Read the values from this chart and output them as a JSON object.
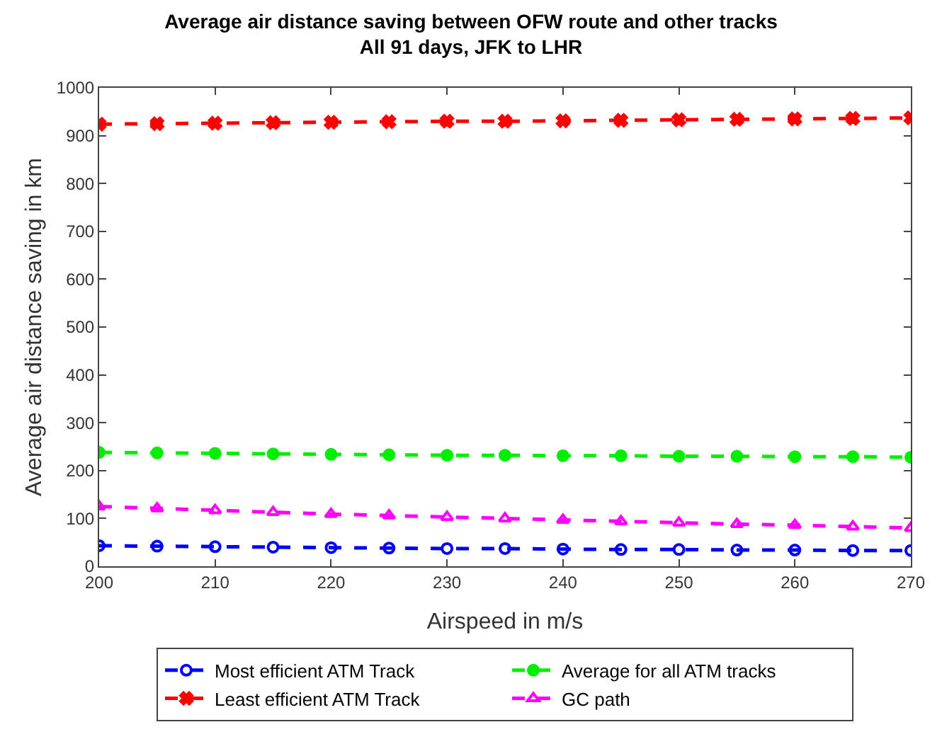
{
  "chart_data": {
    "type": "line",
    "title": "Average air distance saving between OFW route and other tracks",
    "subtitle": "All 91 days, JFK to LHR",
    "xlabel": "Airspeed in m/s",
    "ylabel": "Average air distance saving in km",
    "x": [
      200,
      205,
      210,
      215,
      220,
      225,
      230,
      235,
      240,
      245,
      250,
      255,
      260,
      265,
      270
    ],
    "xlim": [
      200,
      270
    ],
    "xticks": [
      200,
      210,
      220,
      230,
      240,
      250,
      260,
      270
    ],
    "ylim": [
      0,
      1000
    ],
    "yticks": [
      0,
      100,
      200,
      300,
      400,
      500,
      600,
      700,
      800,
      900,
      1000
    ],
    "legend": "bottom",
    "line_style": "dashed",
    "series": [
      {
        "name": "Most efficient ATM Track",
        "color": "#0000ff",
        "marker": "circle-open",
        "values": [
          43,
          42,
          41,
          40,
          39,
          38,
          37,
          37,
          36,
          35,
          35,
          34,
          34,
          33,
          33
        ]
      },
      {
        "name": "Average for all ATM tracks",
        "color": "#00ee00",
        "marker": "circle",
        "values": [
          238,
          237,
          236,
          235,
          234,
          233,
          232,
          232,
          231,
          231,
          230,
          230,
          229,
          229,
          228
        ]
      },
      {
        "name": "Least efficient ATM Track",
        "color": "#ff0000",
        "marker": "x",
        "values": [
          924,
          925,
          926,
          927,
          928,
          929,
          930,
          930,
          931,
          932,
          933,
          934,
          935,
          936,
          937
        ]
      },
      {
        "name": "GC path",
        "color": "#ff00ff",
        "marker": "triangle-up-open",
        "values": [
          125,
          121,
          117,
          113,
          109,
          106,
          103,
          100,
          97,
          94,
          91,
          88,
          86,
          83,
          80
        ]
      }
    ]
  }
}
